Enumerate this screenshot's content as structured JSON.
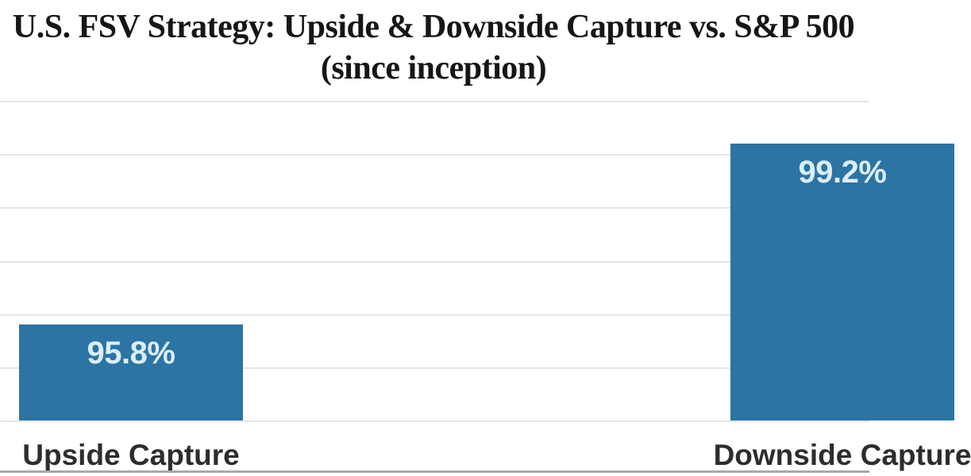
{
  "title": {
    "line1": "U.S. FSV Strategy: Upside & Downside Capture vs. S&P 500",
    "line2": "(since inception)"
  },
  "chart_data": {
    "type": "bar",
    "title": "U.S. FSV Strategy: Upside & Downside Capture vs. S&P 500 (since inception)",
    "categories": [
      "Upside Capture",
      "Downside Capture"
    ],
    "values": [
      95.8,
      99.2
    ],
    "value_labels": [
      "95.8%",
      "99.2%"
    ],
    "xlabel": "",
    "ylabel": "",
    "ylim": [
      94,
      100
    ],
    "gridline_step": 1,
    "grid": true,
    "y_tick_labels_visible": false,
    "legend_position": "none",
    "colors": {
      "bar": "#2b74a4",
      "value_label": "#dbeef8",
      "category_label": "#2d2d2f",
      "gridline": "#e4e4e6",
      "title": "#161616",
      "bottom_rule": "#a8a8aa",
      "background": "#ffffff"
    }
  }
}
